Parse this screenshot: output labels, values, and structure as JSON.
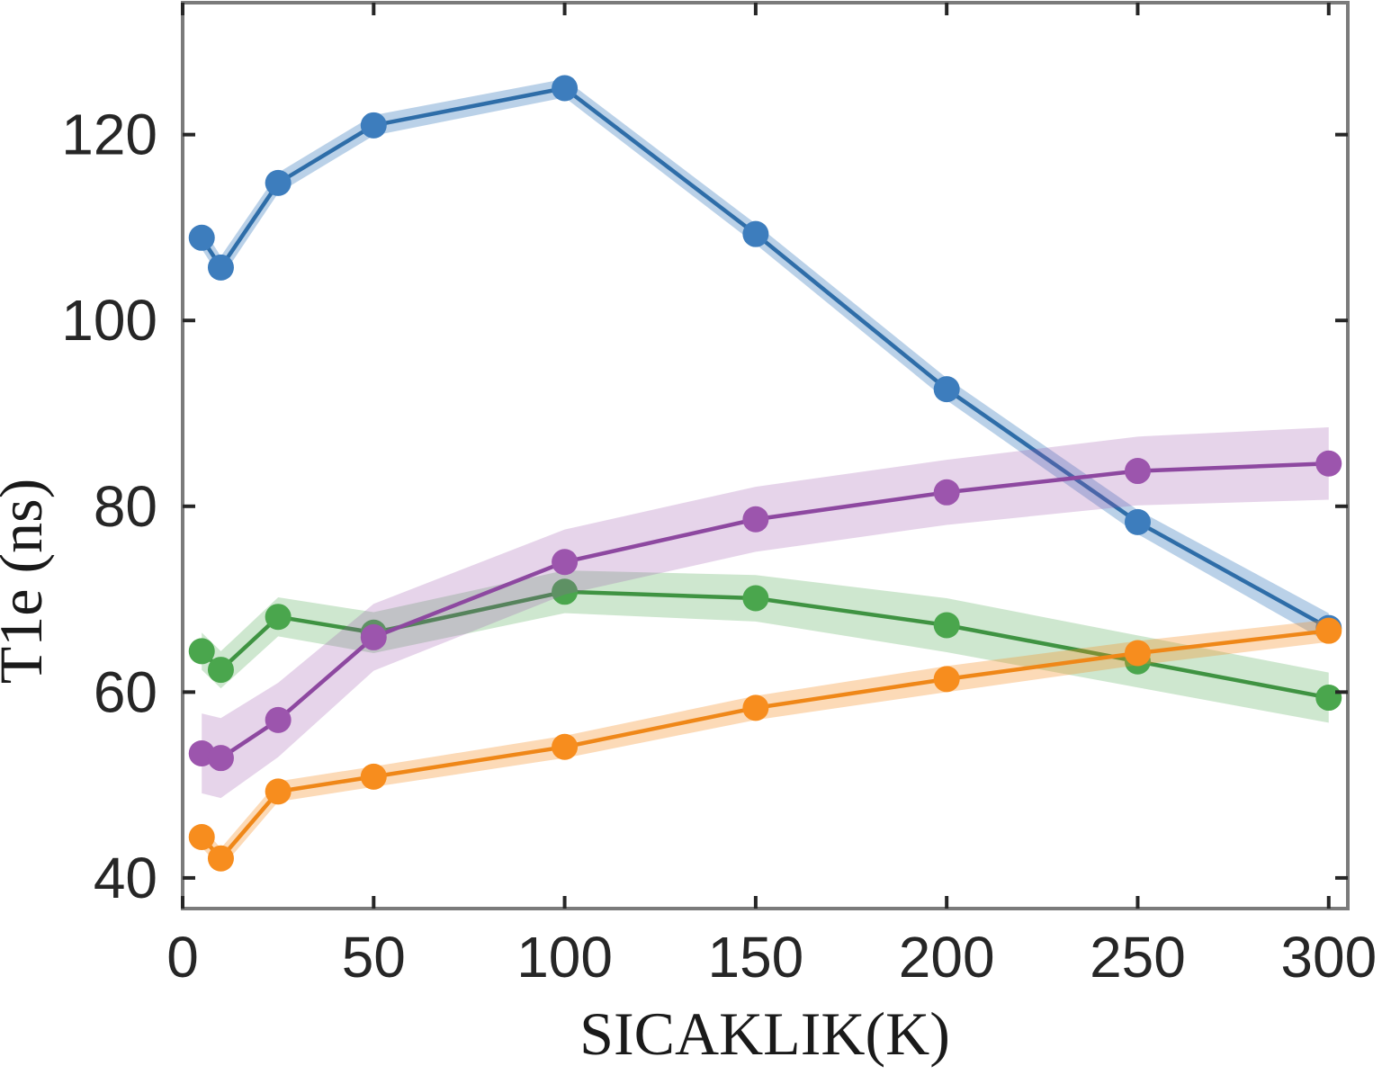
{
  "figure": {
    "background": "#ffffff",
    "axis_box_color": "#7b7b7b",
    "tick_color": "#262626",
    "text_color": "#262626"
  },
  "chart_data": {
    "type": "line",
    "title": "",
    "xlabel": "SICAKLIK(K)",
    "ylabel": "T1e (ns)",
    "x": [
      5,
      10,
      25,
      50,
      100,
      150,
      200,
      250,
      300
    ],
    "xticks": [
      0,
      50,
      100,
      150,
      200,
      250,
      300
    ],
    "yticks": [
      40,
      60,
      80,
      100,
      120
    ],
    "xlim": [
      0,
      305
    ],
    "ylim": [
      36.7,
      134.2
    ],
    "grid": false,
    "legend": "none",
    "band_style": "shaded error band per series",
    "series": [
      {
        "name": "blue",
        "color": "#3d7dbd",
        "line_color": "#2e6da8",
        "band_color": "rgba(58,124,189,0.35)",
        "values": [
          108.9,
          105.7,
          114.8,
          121.0,
          125.0,
          109.3,
          92.6,
          78.3,
          66.9
        ],
        "band_halfwidth": [
          1.2,
          1.2,
          1.1,
          1.1,
          1.0,
          1.1,
          1.2,
          1.3,
          1.6
        ]
      },
      {
        "name": "green",
        "color": "#4aa64d",
        "line_color": "#3f9342",
        "band_color": "rgba(74,165,77,0.27)",
        "values": [
          64.4,
          62.4,
          68.1,
          66.4,
          70.8,
          70.1,
          67.2,
          63.3,
          59.4
        ],
        "band_halfwidth": [
          2.0,
          2.0,
          2.1,
          2.2,
          2.3,
          2.5,
          2.9,
          2.8,
          2.7
        ]
      },
      {
        "name": "orange",
        "color": "#f78d1e",
        "line_color": "#ef8718",
        "band_color": "rgba(247,140,30,0.32)",
        "values": [
          44.4,
          42.1,
          49.3,
          50.9,
          54.1,
          58.3,
          61.4,
          64.2,
          66.6
        ],
        "band_halfwidth": [
          1.1,
          1.1,
          1.1,
          1.1,
          1.2,
          1.3,
          1.4,
          1.3,
          1.2
        ]
      },
      {
        "name": "purple",
        "color": "#9c55ad",
        "line_color": "#8d48a0",
        "band_color": "rgba(156,85,173,0.25)",
        "values": [
          53.4,
          52.9,
          57.0,
          65.9,
          74.0,
          78.6,
          81.5,
          83.8,
          84.6
        ],
        "band_halfwidth": [
          4.3,
          4.3,
          4.0,
          3.6,
          3.5,
          3.5,
          3.5,
          3.7,
          3.9
        ]
      }
    ]
  }
}
